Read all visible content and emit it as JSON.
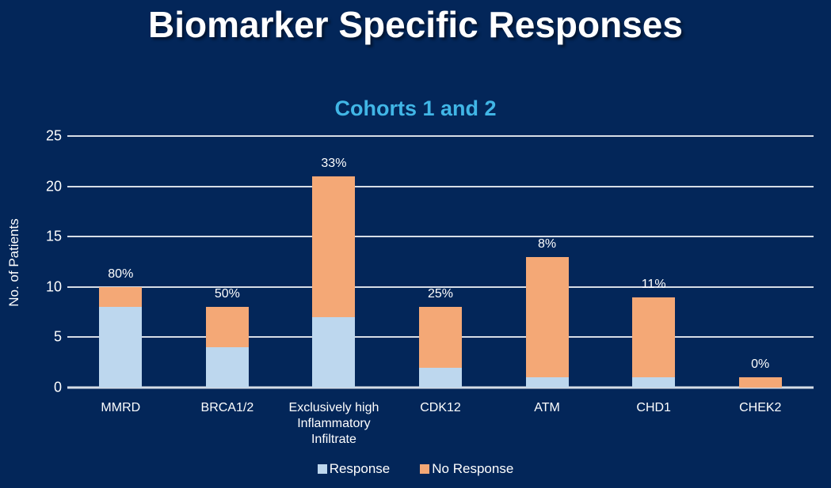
{
  "page": {
    "title": "Biomarker Specific Responses"
  },
  "colors": {
    "background": "#032659",
    "response": "#BDD7EE",
    "no_response": "#F4A876",
    "gridline": "#D7DDE6",
    "subtitle": "#41B6E6",
    "text": "#FFFFFF"
  },
  "chart_data": {
    "type": "bar",
    "stacked": true,
    "title": "Cohorts 1 and 2",
    "ylabel": "No. of Patients",
    "xlabel": "",
    "ylim": [
      0,
      25
    ],
    "yticks": [
      0,
      5,
      10,
      15,
      20,
      25
    ],
    "grid": true,
    "legend_position": "bottom",
    "categories": [
      "MMRD",
      "BRCA1/2",
      "Exclusively high Inflammatory Infiltrate",
      "CDK12",
      "ATM",
      "CHD1",
      "CHEK2"
    ],
    "series": [
      {
        "name": "Response",
        "color": "#BDD7EE",
        "values": [
          8,
          4,
          7,
          2,
          1,
          1,
          0
        ]
      },
      {
        "name": "No Response",
        "color": "#F4A876",
        "values": [
          2,
          4,
          14,
          6,
          12,
          8,
          1
        ]
      }
    ],
    "totals": [
      10,
      8,
      21,
      8,
      13,
      9,
      1
    ],
    "bar_labels": [
      "80%",
      "50%",
      "33%",
      "25%",
      "8%",
      "11%",
      "0%"
    ]
  }
}
